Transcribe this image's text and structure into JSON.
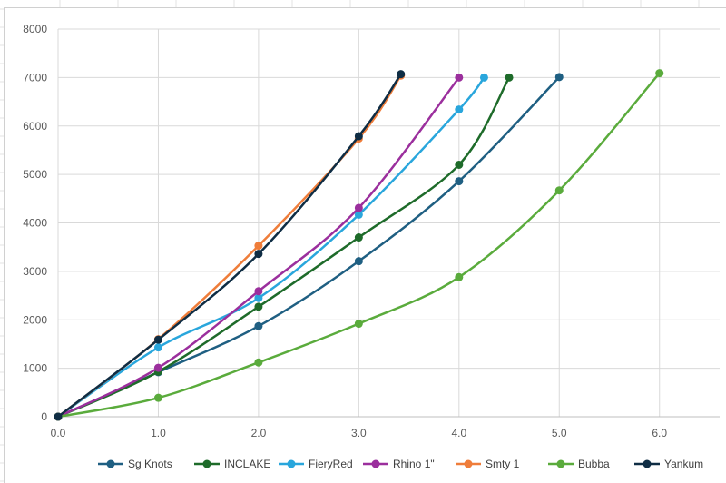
{
  "chart_data": {
    "type": "line",
    "title": "",
    "xlabel": "",
    "ylabel": "",
    "xlim": [
      0,
      6.6
    ],
    "ylim": [
      0,
      8000
    ],
    "x_ticks": [
      "0.0",
      "1.0",
      "2.0",
      "3.0",
      "4.0",
      "5.0",
      "6.0"
    ],
    "y_ticks": [
      "0",
      "1000",
      "2000",
      "3000",
      "4000",
      "5000",
      "6000",
      "7000",
      "8000"
    ],
    "grid": true,
    "legend_position": "bottom",
    "series": [
      {
        "name": "Sg Knots",
        "color": "#1f5f82",
        "x": [
          0,
          1,
          2,
          3,
          4,
          5
        ],
        "y": [
          0,
          920,
          1870,
          3210,
          4860,
          7010
        ]
      },
      {
        "name": "INCLAKE",
        "color": "#1e6b2a",
        "x": [
          0,
          1,
          2,
          3,
          4,
          4.5
        ],
        "y": [
          0,
          930,
          2270,
          3700,
          5200,
          7000
        ]
      },
      {
        "name": "FieryRed",
        "color": "#29a6dc",
        "x": [
          0,
          1,
          2,
          3,
          4,
          4.25
        ],
        "y": [
          0,
          1430,
          2450,
          4170,
          6340,
          7000
        ]
      },
      {
        "name": "Rhino 1\"",
        "color": "#9b2f9d",
        "x": [
          0,
          1,
          2,
          3,
          4
        ],
        "y": [
          0,
          1010,
          2590,
          4310,
          7000
        ]
      },
      {
        "name": "Smty 1",
        "color": "#ef7d3a",
        "x": [
          0,
          1,
          2,
          3,
          3.42
        ],
        "y": [
          0,
          1600,
          3530,
          5740,
          7040
        ]
      },
      {
        "name": "Bubba",
        "color": "#5aab3c",
        "x": [
          0,
          1,
          2,
          3,
          4,
          5,
          6
        ],
        "y": [
          0,
          390,
          1120,
          1920,
          2880,
          4670,
          7090
        ]
      },
      {
        "name": "Yankum",
        "color": "#0f2d44",
        "x": [
          0,
          1,
          2,
          3,
          3.42
        ],
        "y": [
          0,
          1590,
          3360,
          5790,
          7070
        ]
      }
    ]
  }
}
